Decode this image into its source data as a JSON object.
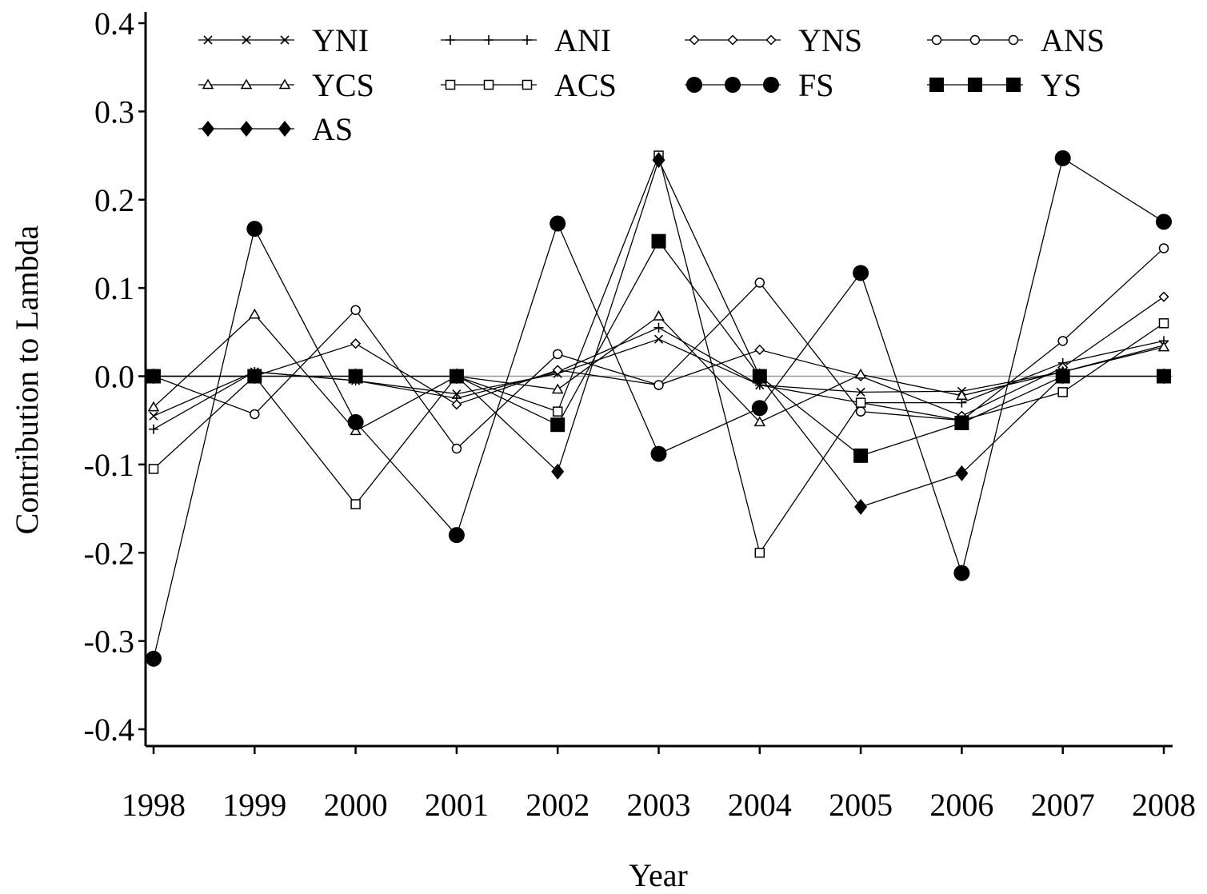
{
  "chart_data": {
    "type": "line",
    "title": "",
    "xlabel": "Year",
    "ylabel": "Contribution to Lambda",
    "x": [
      1998,
      1999,
      2000,
      2001,
      2002,
      2003,
      2004,
      2005,
      2006,
      2007,
      2008
    ],
    "x_tick_labels": [
      "1998",
      "1999",
      "2000",
      "2001",
      "2002",
      "2003",
      "2004",
      "2005",
      "2006",
      "2007",
      "2008"
    ],
    "ylim": [
      -0.4,
      0.4
    ],
    "y_ticks": [
      -0.4,
      -0.3,
      -0.2,
      -0.1,
      0.0,
      0.1,
      0.2,
      0.3,
      0.4
    ],
    "y_tick_labels": [
      "-0.4",
      "-0.3",
      "-0.2",
      "-0.1",
      "0.0",
      "0.1",
      "0.2",
      "0.3",
      "0.4"
    ],
    "reference_line_y": 0.0,
    "grid": false,
    "legend_position": "top",
    "series": [
      {
        "name": "YNI",
        "marker": "x",
        "values": [
          -0.045,
          0.005,
          -0.005,
          -0.02,
          0.003,
          0.042,
          -0.01,
          -0.018,
          -0.017,
          0.005,
          0.035
        ]
      },
      {
        "name": "ANI",
        "marker": "plus",
        "values": [
          -0.06,
          0.005,
          -0.005,
          -0.025,
          0.005,
          0.055,
          -0.01,
          -0.03,
          -0.03,
          0.015,
          0.04
        ]
      },
      {
        "name": "YNS",
        "marker": "diamond-open",
        "values": [
          0.0,
          0.0,
          0.037,
          -0.032,
          0.007,
          -0.01,
          0.03,
          0.0,
          -0.045,
          0.01,
          0.09
        ]
      },
      {
        "name": "ANS",
        "marker": "circle-open",
        "values": [
          0.0,
          -0.043,
          0.075,
          -0.082,
          0.025,
          -0.01,
          0.106,
          -0.04,
          -0.05,
          0.04,
          0.145
        ]
      },
      {
        "name": "YCS",
        "marker": "triangle-open",
        "values": [
          -0.035,
          0.07,
          -0.062,
          0.0,
          -0.015,
          0.068,
          -0.052,
          0.002,
          -0.022,
          0.005,
          0.033
        ]
      },
      {
        "name": "ACS",
        "marker": "square-open",
        "values": [
          -0.105,
          0.0,
          -0.145,
          0.0,
          -0.04,
          0.25,
          -0.2,
          -0.03,
          -0.05,
          -0.018,
          0.06
        ]
      },
      {
        "name": "FS",
        "marker": "circle-filled",
        "values": [
          -0.32,
          0.167,
          -0.052,
          -0.18,
          0.173,
          -0.088,
          -0.036,
          0.117,
          -0.223,
          0.247,
          0.175
        ]
      },
      {
        "name": "YS",
        "marker": "square-filled",
        "values": [
          0.0,
          0.0,
          0.0,
          0.0,
          -0.055,
          0.153,
          0.0,
          -0.09,
          -0.053,
          0.0,
          0.0
        ]
      },
      {
        "name": "AS",
        "marker": "diamond-filled",
        "values": [
          0.0,
          0.0,
          0.0,
          0.0,
          -0.108,
          0.245,
          0.0,
          -0.148,
          -0.11,
          0.0,
          0.0
        ]
      }
    ]
  }
}
